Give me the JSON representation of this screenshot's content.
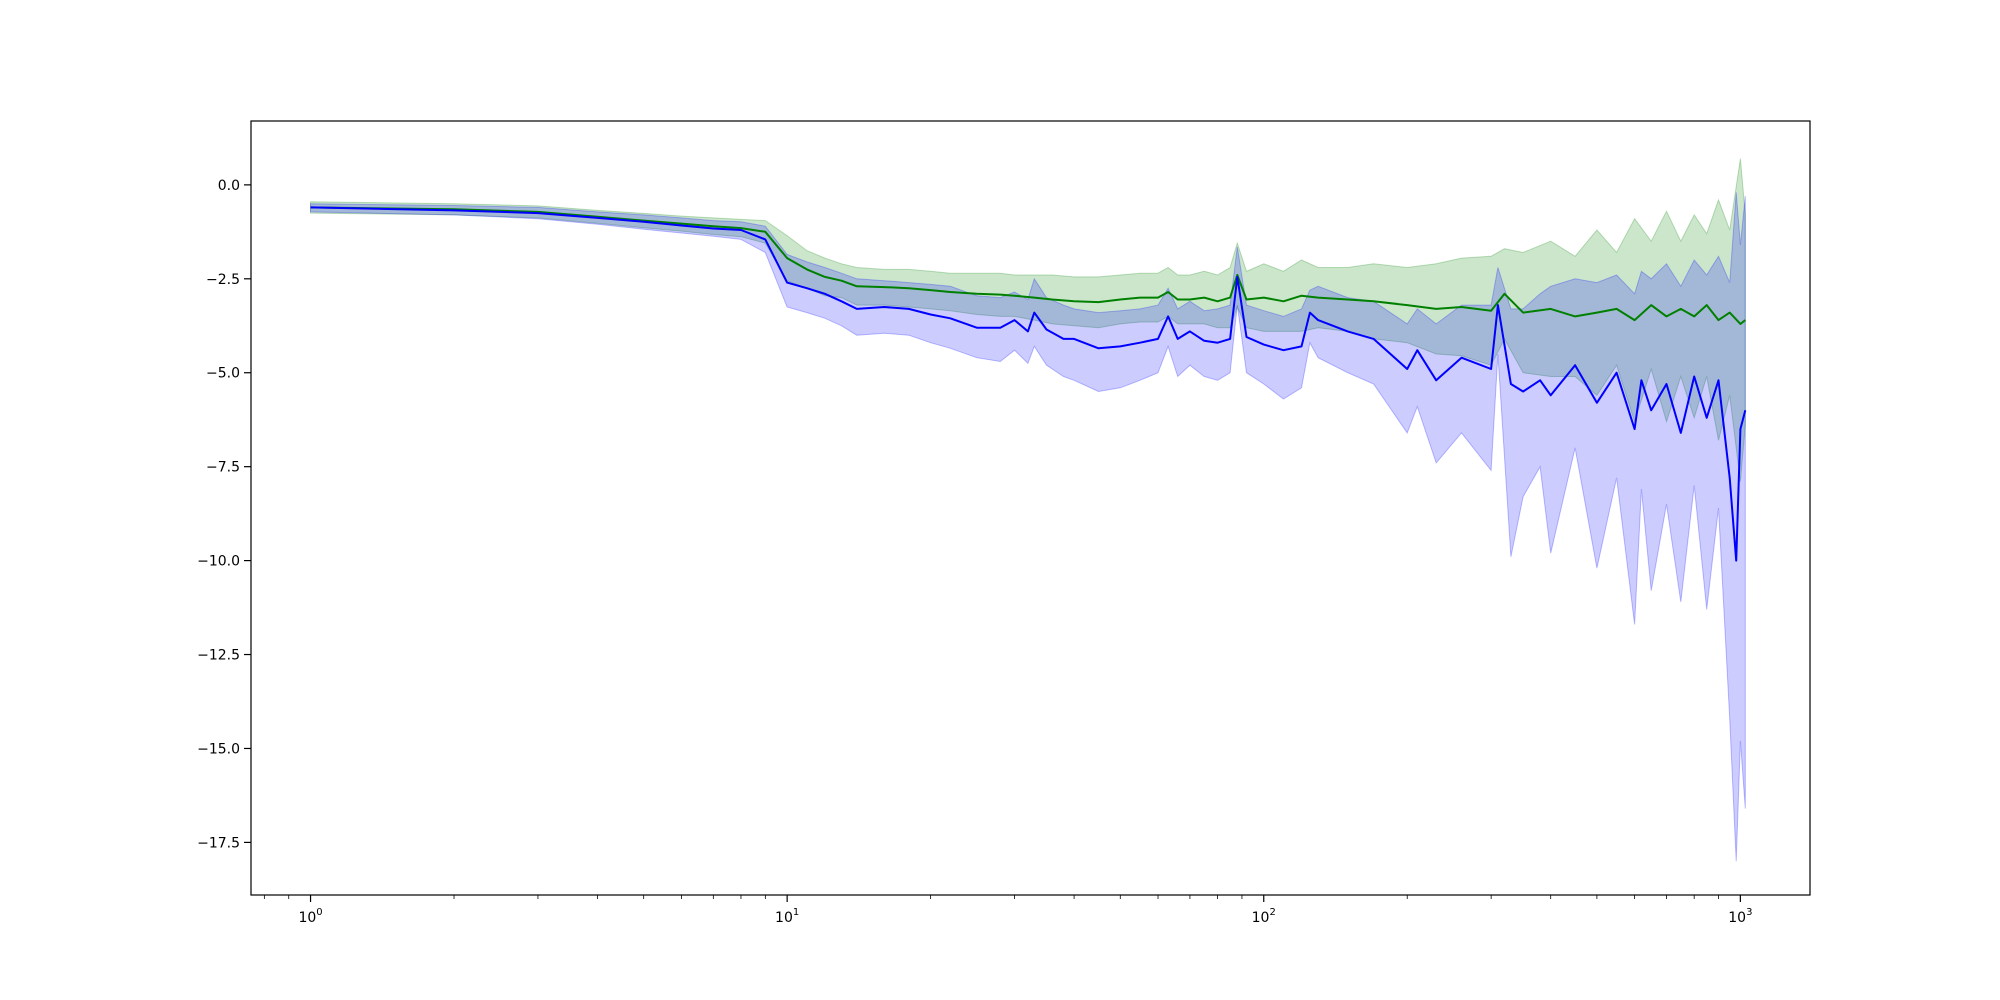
{
  "chart_data": {
    "type": "line",
    "title": "",
    "xlabel": "",
    "ylabel": "",
    "xscale": "log",
    "xlim": [
      0.75,
      1400
    ],
    "ylim": [
      -18.9,
      1.7
    ],
    "grid": false,
    "legend": "none",
    "x_ticks": [
      {
        "base": "10",
        "exp": "0",
        "value": 1
      },
      {
        "base": "10",
        "exp": "1",
        "value": 10
      },
      {
        "base": "10",
        "exp": "2",
        "value": 100
      },
      {
        "base": "10",
        "exp": "3",
        "value": 1000
      }
    ],
    "y_ticks": [
      {
        "label": "0.0",
        "value": 0
      },
      {
        "label": "−2.5",
        "value": -2.5
      },
      {
        "label": "−5.0",
        "value": -5
      },
      {
        "label": "−7.5",
        "value": -7.5
      },
      {
        "label": "−10.0",
        "value": -10
      },
      {
        "label": "−12.5",
        "value": -12.5
      },
      {
        "label": "−15.0",
        "value": -15
      },
      {
        "label": "−17.5",
        "value": -17.5
      }
    ],
    "series": [
      {
        "color": "#008000",
        "band_color": "#008000",
        "band_opacity": 0.2,
        "x": [
          1,
          2,
          3,
          4,
          5,
          6,
          7,
          8,
          9,
          10,
          11,
          12,
          13,
          14,
          16,
          18,
          20,
          22,
          25,
          28,
          30,
          33,
          36,
          40,
          45,
          50,
          55,
          60,
          63,
          66,
          70,
          75,
          80,
          85,
          88,
          92,
          100,
          110,
          120,
          130,
          150,
          170,
          200,
          230,
          260,
          300,
          320,
          350,
          400,
          450,
          500,
          550,
          600,
          650,
          700,
          750,
          800,
          850,
          900,
          950,
          1000,
          1024
        ],
        "y": [
          -0.6,
          -0.65,
          -0.72,
          -0.85,
          -0.95,
          -1.03,
          -1.1,
          -1.15,
          -1.25,
          -1.95,
          -2.25,
          -2.45,
          -2.55,
          -2.7,
          -2.72,
          -2.75,
          -2.8,
          -2.85,
          -2.9,
          -2.92,
          -2.95,
          -3.0,
          -3.05,
          -3.1,
          -3.12,
          -3.05,
          -3.0,
          -3.0,
          -2.85,
          -3.05,
          -3.05,
          -3.0,
          -3.1,
          -3.0,
          -2.4,
          -3.05,
          -3.0,
          -3.1,
          -2.95,
          -3.0,
          -3.05,
          -3.1,
          -3.2,
          -3.3,
          -3.25,
          -3.35,
          -2.9,
          -3.4,
          -3.3,
          -3.5,
          -3.4,
          -3.3,
          -3.6,
          -3.2,
          -3.5,
          -3.3,
          -3.5,
          -3.2,
          -3.6,
          -3.4,
          -3.7,
          -3.6
        ],
        "upper": [
          -0.45,
          -0.5,
          -0.56,
          -0.68,
          -0.76,
          -0.83,
          -0.88,
          -0.92,
          -0.95,
          -1.35,
          -1.75,
          -1.95,
          -2.1,
          -2.2,
          -2.25,
          -2.25,
          -2.3,
          -2.35,
          -2.35,
          -2.35,
          -2.4,
          -2.4,
          -2.4,
          -2.45,
          -2.45,
          -2.4,
          -2.35,
          -2.35,
          -2.2,
          -2.4,
          -2.4,
          -2.3,
          -2.4,
          -2.2,
          -1.55,
          -2.3,
          -2.1,
          -2.3,
          -2.0,
          -2.2,
          -2.2,
          -2.1,
          -2.2,
          -2.1,
          -1.95,
          -1.9,
          -1.7,
          -1.8,
          -1.5,
          -1.9,
          -1.2,
          -1.8,
          -0.9,
          -1.5,
          -0.7,
          -1.5,
          -0.8,
          -1.3,
          -0.4,
          -1.2,
          0.7,
          -0.8
        ],
        "lower": [
          -0.75,
          -0.8,
          -0.88,
          -1.02,
          -1.14,
          -1.23,
          -1.32,
          -1.38,
          -1.55,
          -2.55,
          -2.75,
          -2.95,
          -3.0,
          -3.2,
          -3.2,
          -3.25,
          -3.3,
          -3.35,
          -3.45,
          -3.5,
          -3.5,
          -3.6,
          -3.7,
          -3.75,
          -3.8,
          -3.7,
          -3.65,
          -3.65,
          -3.5,
          -3.7,
          -3.7,
          -3.7,
          -3.8,
          -3.8,
          -3.25,
          -3.8,
          -3.9,
          -3.9,
          -3.9,
          -3.8,
          -3.9,
          -4.1,
          -4.2,
          -4.5,
          -4.55,
          -4.8,
          -4.1,
          -5.0,
          -5.1,
          -5.1,
          -5.6,
          -4.8,
          -6.3,
          -4.9,
          -6.3,
          -5.1,
          -6.2,
          -5.1,
          -6.8,
          -5.6,
          -7.9,
          -6.4
        ]
      },
      {
        "color": "#0000ff",
        "band_color": "#0000ff",
        "band_opacity": 0.2,
        "x": [
          1,
          2,
          3,
          4,
          5,
          6,
          7,
          8,
          9,
          10,
          11,
          12,
          13,
          14,
          16,
          18,
          20,
          22,
          25,
          28,
          30,
          32,
          33,
          35,
          38,
          40,
          45,
          50,
          55,
          60,
          63,
          66,
          70,
          75,
          80,
          85,
          88,
          92,
          100,
          110,
          120,
          125,
          130,
          150,
          170,
          200,
          210,
          230,
          260,
          300,
          310,
          330,
          350,
          380,
          400,
          450,
          500,
          550,
          600,
          620,
          650,
          700,
          750,
          800,
          850,
          900,
          950,
          980,
          1000,
          1024
        ],
        "y": [
          -0.6,
          -0.68,
          -0.75,
          -0.88,
          -0.98,
          -1.08,
          -1.16,
          -1.2,
          -1.45,
          -2.6,
          -2.75,
          -2.9,
          -3.1,
          -3.3,
          -3.25,
          -3.3,
          -3.45,
          -3.55,
          -3.8,
          -3.8,
          -3.6,
          -3.9,
          -3.4,
          -3.85,
          -4.1,
          -4.1,
          -4.35,
          -4.3,
          -4.2,
          -4.1,
          -3.5,
          -4.1,
          -3.9,
          -4.15,
          -4.2,
          -4.1,
          -2.45,
          -4.05,
          -4.25,
          -4.4,
          -4.3,
          -3.4,
          -3.6,
          -3.9,
          -4.1,
          -4.9,
          -4.4,
          -5.2,
          -4.6,
          -4.9,
          -3.2,
          -5.3,
          -5.5,
          -5.2,
          -5.6,
          -4.8,
          -5.8,
          -5.0,
          -6.5,
          -5.2,
          -6.0,
          -5.3,
          -6.6,
          -5.1,
          -6.2,
          -5.2,
          -7.8,
          -10.0,
          -6.5,
          -6.0
        ],
        "upper": [
          -0.5,
          -0.55,
          -0.6,
          -0.72,
          -0.8,
          -0.88,
          -0.95,
          -0.98,
          -1.1,
          -1.85,
          -2.05,
          -2.2,
          -2.35,
          -2.5,
          -2.55,
          -2.6,
          -2.65,
          -2.7,
          -2.95,
          -3.0,
          -2.85,
          -3.05,
          -2.5,
          -3.0,
          -3.2,
          -3.3,
          -3.4,
          -3.35,
          -3.3,
          -3.2,
          -2.75,
          -3.3,
          -3.1,
          -3.35,
          -3.3,
          -3.2,
          -1.65,
          -3.2,
          -3.35,
          -3.5,
          -3.3,
          -2.8,
          -2.7,
          -3.0,
          -3.1,
          -3.7,
          -3.3,
          -3.7,
          -3.2,
          -3.2,
          -2.2,
          -3.3,
          -3.3,
          -2.9,
          -2.7,
          -2.5,
          -2.6,
          -2.4,
          -2.9,
          -2.3,
          -2.5,
          -2.1,
          -2.7,
          -2.0,
          -2.4,
          -1.9,
          -2.6,
          -0.2,
          -1.6,
          -0.3
        ],
        "lower": [
          -0.72,
          -0.8,
          -0.9,
          -1.05,
          -1.18,
          -1.28,
          -1.37,
          -1.45,
          -1.8,
          -3.25,
          -3.4,
          -3.55,
          -3.75,
          -4.0,
          -3.95,
          -4.0,
          -4.2,
          -4.35,
          -4.6,
          -4.7,
          -4.4,
          -4.75,
          -4.3,
          -4.8,
          -5.1,
          -5.2,
          -5.5,
          -5.4,
          -5.2,
          -5.0,
          -4.3,
          -5.1,
          -4.8,
          -5.1,
          -5.2,
          -5.0,
          -3.2,
          -5.0,
          -5.3,
          -5.7,
          -5.4,
          -4.2,
          -4.6,
          -5.0,
          -5.3,
          -6.6,
          -5.9,
          -7.4,
          -6.6,
          -7.6,
          -4.5,
          -9.9,
          -8.3,
          -7.5,
          -9.8,
          -7.0,
          -10.2,
          -7.8,
          -11.7,
          -8.1,
          -10.8,
          -8.5,
          -11.1,
          -8.0,
          -11.3,
          -8.6,
          -14.2,
          -18.0,
          -14.8,
          -16.6
        ]
      }
    ]
  }
}
